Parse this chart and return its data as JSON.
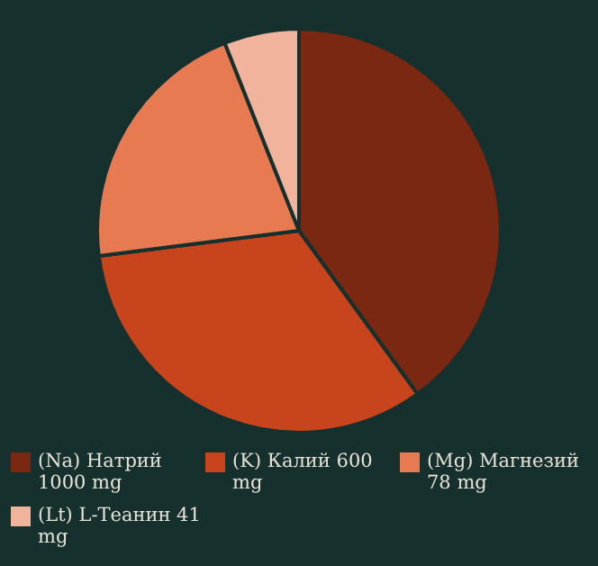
{
  "chart_data": {
    "type": "pie",
    "categories": [
      "(Na) Натрий 1000 mg",
      "(K) Калий 600 mg",
      "(Mg) Магнезий 78 mg",
      "(Lt) L-Теанин 41 mg"
    ],
    "values": [
      40,
      33,
      21,
      6
    ],
    "colors": [
      "#7a2812",
      "#c8441c",
      "#e87a52",
      "#f2b39c"
    ],
    "legend": "bottom"
  }
}
